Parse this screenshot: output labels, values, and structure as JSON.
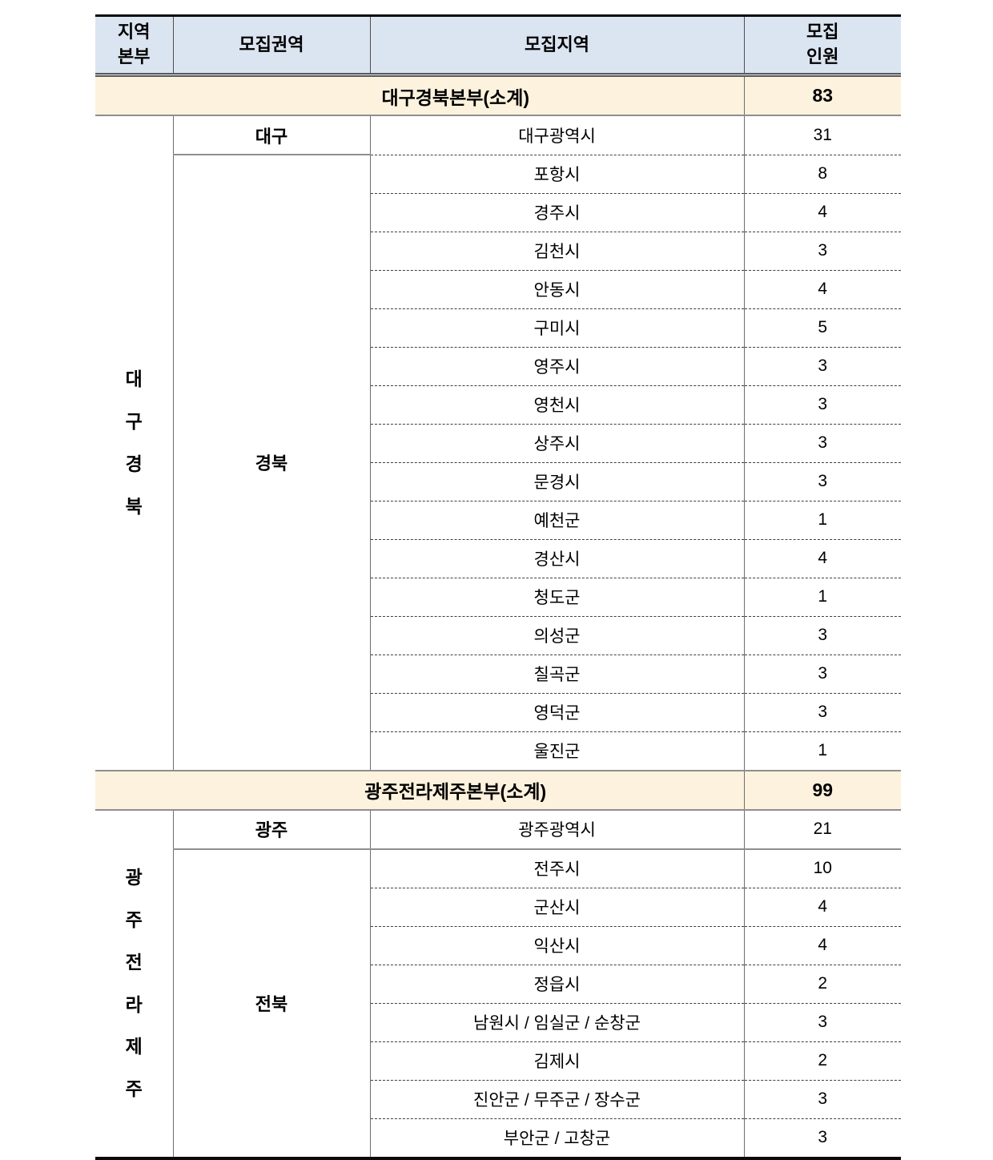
{
  "table": {
    "headers": [
      "지역\n본부",
      "모집권역",
      "모집지역",
      "모집\n인원"
    ],
    "sections": [
      {
        "subtotal_label": "대구경북본부(소계)",
        "subtotal_value": "83",
        "hq_label": "대구경북",
        "groups": [
          {
            "region": "대구",
            "rows": [
              {
                "area": "대구광역시",
                "count": "31"
              }
            ]
          },
          {
            "region": "경북",
            "rows": [
              {
                "area": "포항시",
                "count": "8"
              },
              {
                "area": "경주시",
                "count": "4"
              },
              {
                "area": "김천시",
                "count": "3"
              },
              {
                "area": "안동시",
                "count": "4"
              },
              {
                "area": "구미시",
                "count": "5"
              },
              {
                "area": "영주시",
                "count": "3"
              },
              {
                "area": "영천시",
                "count": "3"
              },
              {
                "area": "상주시",
                "count": "3"
              },
              {
                "area": "문경시",
                "count": "3"
              },
              {
                "area": "예천군",
                "count": "1"
              },
              {
                "area": "경산시",
                "count": "4"
              },
              {
                "area": "청도군",
                "count": "1"
              },
              {
                "area": "의성군",
                "count": "3"
              },
              {
                "area": "칠곡군",
                "count": "3"
              },
              {
                "area": "영덕군",
                "count": "3"
              },
              {
                "area": "울진군",
                "count": "1"
              }
            ]
          }
        ]
      },
      {
        "subtotal_label": "광주전라제주본부(소계)",
        "subtotal_value": "99",
        "hq_label": "광주전라제주",
        "groups": [
          {
            "region": "광주",
            "rows": [
              {
                "area": "광주광역시",
                "count": "21"
              }
            ]
          },
          {
            "region": "전북",
            "rows": [
              {
                "area": "전주시",
                "count": "10"
              },
              {
                "area": "군산시",
                "count": "4"
              },
              {
                "area": "익산시",
                "count": "4"
              },
              {
                "area": "정읍시",
                "count": "2"
              },
              {
                "area": "남원시 / 임실군 / 순창군",
                "count": "3"
              },
              {
                "area": "김제시",
                "count": "2"
              },
              {
                "area": "진안군 / 무주군 / 장수군",
                "count": "3"
              },
              {
                "area": "부안군 / 고창군",
                "count": "3"
              }
            ]
          }
        ]
      }
    ]
  },
  "colors": {
    "header_bg": "#dbe5f1",
    "subtotal_bg": "#fdf2dd",
    "border_dark": "#0a0a0a",
    "border_gray": "#6e6e6e",
    "text": "#000000"
  }
}
